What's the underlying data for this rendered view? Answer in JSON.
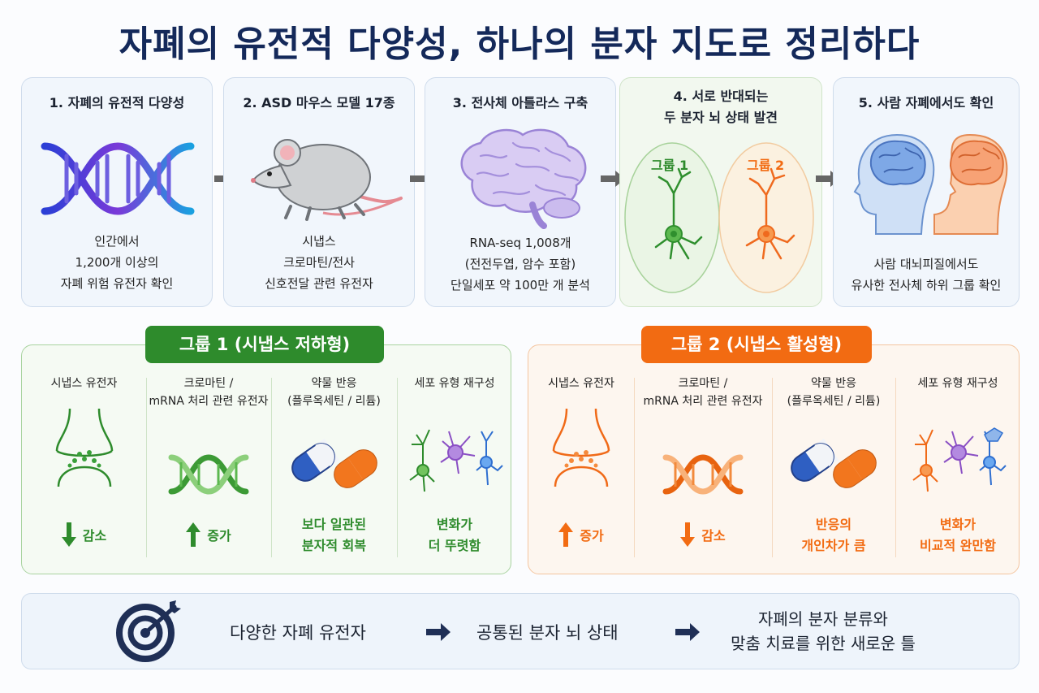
{
  "title": "자폐의 유전적 다양성, 하나의 분자 지도로 정리하다",
  "steps": [
    {
      "title": [
        "1. 자폐의 유전적 다양성"
      ],
      "desc": [
        "인간에서",
        "1,200개 이상의",
        "자폐 위험 유전자 확인"
      ],
      "icon": "dna-icon"
    },
    {
      "title": [
        "2. ASD 마우스 모델 17종"
      ],
      "desc": [
        "시냅스",
        "크로마틴/전사",
        "신호전달 관련 유전자"
      ],
      "icon": "mouse-icon"
    },
    {
      "title": [
        "3. 전사체 아틀라스 구축"
      ],
      "desc": [
        "RNA-seq 1,008개",
        "(전전두엽, 암수 포함)",
        "단일세포 약 100만 개 분석"
      ],
      "icon": "brain-icon"
    },
    {
      "title": [
        "4. 서로 반대되는",
        "두 분자 뇌 상태 발견"
      ],
      "desc": [],
      "group1_label": "그룹 1",
      "group2_label": "그룹 2",
      "icon": "neuron-groups-icon"
    },
    {
      "title": [
        "5. 사람 자폐에서도 확인"
      ],
      "desc": [
        "사람 대뇌피질에서도",
        "유사한 전사체 하위 그룹 확인"
      ],
      "icon": "human-heads-icon"
    }
  ],
  "group1": {
    "label": "그룹 1 (시냅스 저하형)",
    "color": "#2e8b2c",
    "columns": [
      {
        "title": [
          "시냅스 유전자"
        ],
        "result": [
          "감소"
        ],
        "direction": "down"
      },
      {
        "title": [
          "크로마틴 /",
          "mRNA 처리 관련 유전자"
        ],
        "result": [
          "증가"
        ],
        "direction": "up"
      },
      {
        "title": [
          "약물 반응",
          "(플루옥세틴 / 리튬)"
        ],
        "result": [
          "보다 일관된",
          "분자적 회복"
        ],
        "direction": "none"
      },
      {
        "title": [
          "세포 유형 재구성"
        ],
        "result": [
          "변화가",
          "더 뚜렷함"
        ],
        "direction": "none"
      }
    ]
  },
  "group2": {
    "label": "그룹 2 (시냅스 활성형)",
    "color": "#f26b12",
    "columns": [
      {
        "title": [
          "시냅스 유전자"
        ],
        "result": [
          "증가"
        ],
        "direction": "up"
      },
      {
        "title": [
          "크로마틴 /",
          "mRNA 처리 관련 유전자"
        ],
        "result": [
          "감소"
        ],
        "direction": "down"
      },
      {
        "title": [
          "약물 반응",
          "(플루옥세틴 / 리튬)"
        ],
        "result": [
          "반응의",
          "개인차가 큼"
        ],
        "direction": "none"
      },
      {
        "title": [
          "세포 유형 재구성"
        ],
        "result": [
          "변화가",
          "비교적 완만함"
        ],
        "direction": "none"
      }
    ]
  },
  "bottom": {
    "item1": "다양한 자폐 유전자",
    "item2": "공통된 분자 뇌 상태",
    "item3": [
      "자폐의 분자 분류와",
      "맞춤 치료를 위한 새로운 틀"
    ],
    "icon": "target-icon"
  }
}
